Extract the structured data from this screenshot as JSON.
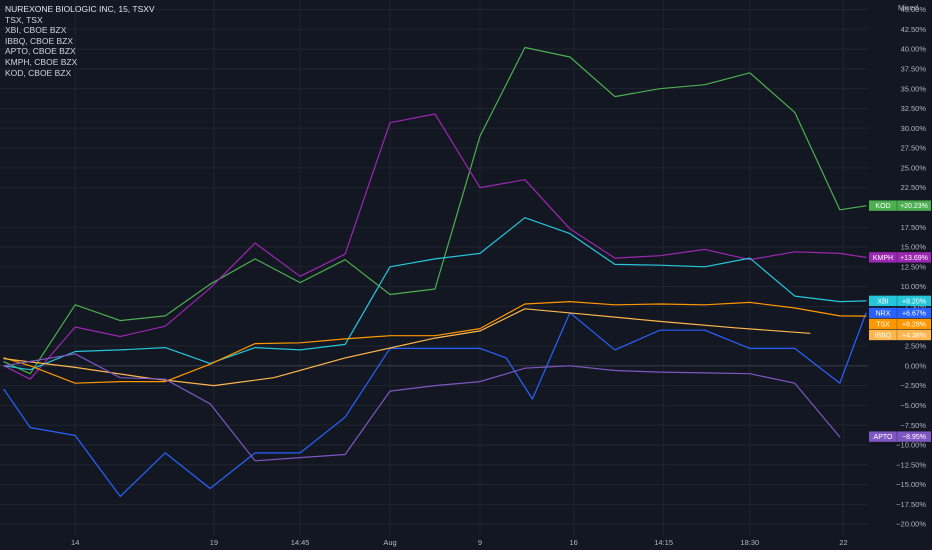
{
  "scale_mode": "Mixed",
  "chart_data": {
    "type": "line",
    "legend": [
      "NUREXONE BIOLOGIC INC, 15, TSXV",
      "TSX, TSX",
      "XBI, CBOE BZX",
      "IBBQ, CBOE BZX",
      "APTO, CBOE BZX",
      "KMPH, CBOE BZX",
      "KOD, CBOE BZX"
    ],
    "legend_placement": "top-left",
    "grid": true,
    "y_unit": "%",
    "ylim": [
      -21.5,
      46.2
    ],
    "y_ticks": [
      "45.00%",
      "42.50%",
      "40.00%",
      "37.50%",
      "35.00%",
      "32.50%",
      "30.00%",
      "27.50%",
      "25.00%",
      "22.50%",
      "17.50%",
      "15.00%",
      "12.50%",
      "10.00%",
      "7.50%",
      "2.50%",
      "0.00%",
      "−2.50%",
      "−5.00%",
      "−7.50%",
      "−10.00%",
      "−12.50%",
      "−15.00%",
      "−17.50%",
      "−20.00%"
    ],
    "y_tick_values": [
      45,
      42.5,
      40,
      37.5,
      35,
      32.5,
      30,
      27.5,
      25,
      22.5,
      17.5,
      15,
      12.5,
      10,
      7.5,
      2.5,
      0,
      -2.5,
      -5,
      -7.5,
      -10,
      -12.5,
      -15,
      -17.5,
      -20
    ],
    "x_range": [
      0,
      23
    ],
    "x_ticks": [
      {
        "label": "14",
        "x": 1.9
      },
      {
        "label": "19",
        "x": 5.6
      },
      {
        "label": "14:45",
        "x": 7.9
      },
      {
        "label": "Aug",
        "x": 10.3
      },
      {
        "label": "9",
        "x": 12.7
      },
      {
        "label": "16",
        "x": 15.2
      },
      {
        "label": "14:15",
        "x": 17.6
      },
      {
        "label": "18:30",
        "x": 19.9
      },
      {
        "label": "22",
        "x": 22.4
      }
    ],
    "series": [
      {
        "name": "KOD",
        "color": "#4caf50",
        "label": "KOD",
        "value_label": "+20.23%",
        "label_value": 20.23,
        "x": [
          0,
          0.7,
          1.9,
          3.1,
          4.3,
          5.5,
          6.7,
          7.9,
          9.1,
          10.3,
          11.5,
          12.7,
          13.9,
          15.1,
          16.3,
          17.5,
          18.7,
          19.9,
          21.1,
          22.3,
          23
        ],
        "y": [
          0.5,
          -1,
          7.7,
          5.7,
          6.3,
          10.3,
          13.5,
          10.5,
          13.4,
          9,
          9.7,
          29,
          40.2,
          39,
          34,
          35,
          35.5,
          37,
          32,
          19.7,
          20.2
        ]
      },
      {
        "name": "KMPH",
        "color": "#9c27b0",
        "label": "KMPH",
        "value_label": "+13.69%",
        "label_value": 13.69,
        "x": [
          0,
          0.7,
          1.9,
          3.1,
          4.3,
          5.5,
          6.7,
          7.9,
          9.1,
          10.3,
          11.5,
          12.7,
          13.9,
          15.1,
          16.3,
          17.5,
          18.7,
          19.9,
          21.1,
          22.3,
          23
        ],
        "y": [
          0,
          -1.7,
          4.9,
          3.7,
          5,
          9.8,
          15.5,
          11.3,
          14.1,
          30.7,
          31.8,
          22.5,
          23.5,
          17.3,
          13.6,
          13.9,
          14.7,
          13.4,
          14.4,
          14.2,
          13.69
        ]
      },
      {
        "name": "XBI",
        "color": "#26c6da",
        "label": "XBI",
        "value_label": "+8.20%",
        "label_value": 8.2,
        "x": [
          0,
          0.7,
          1.9,
          3.1,
          4.3,
          5.5,
          6.7,
          7.9,
          9.1,
          10.3,
          11.5,
          12.7,
          13.9,
          15.1,
          16.3,
          17.5,
          18.7,
          19.9,
          21.1,
          22.3,
          23
        ],
        "y": [
          0,
          -0.5,
          1.8,
          2,
          2.3,
          0.3,
          2.3,
          2,
          2.7,
          12.5,
          13.5,
          14.2,
          18.7,
          16.7,
          12.8,
          12.7,
          12.5,
          13.6,
          8.8,
          8.1,
          8.2
        ]
      },
      {
        "name": "NRX",
        "color": "#2962ff",
        "label": "NRX",
        "value_label": "+6.67%",
        "label_value": 6.67,
        "x": [
          0,
          0.7,
          1.9,
          3.1,
          4.3,
          5.5,
          6.7,
          7.9,
          9.1,
          10.3,
          11.5,
          12.7,
          13.4,
          14.1,
          15.1,
          16.3,
          17.5,
          18.7,
          19.9,
          21.1,
          22.3,
          23
        ],
        "y": [
          -3,
          -7.8,
          -8.8,
          -16.5,
          -11,
          -15.5,
          -11,
          -11,
          -6.5,
          2.2,
          2.2,
          2.2,
          1,
          -4.2,
          6.7,
          2,
          4.5,
          4.5,
          2.2,
          2.2,
          -2.2,
          6.67
        ]
      },
      {
        "name": "TSX",
        "color": "#ff9800",
        "label": "TSX",
        "value_label": "+6.28%",
        "label_value": 6.28,
        "x": [
          0,
          0.7,
          1.9,
          3.1,
          4.3,
          5.5,
          6.7,
          7.9,
          9.1,
          10.3,
          11.5,
          12.7,
          13.9,
          15.1,
          16.3,
          17.5,
          18.7,
          19.9,
          21.1,
          22.3,
          23
        ],
        "y": [
          1,
          0,
          -2.2,
          -2,
          -2,
          0.2,
          2.8,
          2.9,
          3.4,
          3.8,
          3.8,
          4.7,
          7.8,
          8.1,
          7.7,
          7.8,
          7.7,
          8,
          7.3,
          6.3,
          6.28
        ]
      },
      {
        "name": "IBBQ",
        "color": "#ffb74d",
        "label": "IBBQ",
        "value_label": "+4.38%",
        "label_value": 4.38,
        "x": [
          0,
          1.9,
          3.9,
          5.6,
          7.2,
          9.1,
          11.5,
          12.7,
          13.9,
          15.5,
          17.5,
          19.5,
          21.5
        ],
        "y": [
          0.9,
          -0.2,
          -1.6,
          -2.5,
          -1.5,
          1,
          3.5,
          4.4,
          7.2,
          6.5,
          5.6,
          4.8,
          4.1
        ]
      },
      {
        "name": "APTO",
        "color": "#7e57c2",
        "label": "APTO",
        "value_label": "−8.95%",
        "label_value": -8.95,
        "x": [
          0,
          1.9,
          3.1,
          4.3,
          5.5,
          6.7,
          7.9,
          9.1,
          10.3,
          11.5,
          12.7,
          13.9,
          15.1,
          16.3,
          17.5,
          18.7,
          19.9,
          21.1,
          22.3
        ],
        "y": [
          0,
          1.5,
          -1.5,
          -1.7,
          -4.8,
          -12,
          -11.6,
          -11.2,
          -3.2,
          -2.5,
          -2,
          -0.3,
          0,
          -0.6,
          -0.8,
          -0.9,
          -1,
          -2.2,
          -9
        ]
      }
    ]
  }
}
